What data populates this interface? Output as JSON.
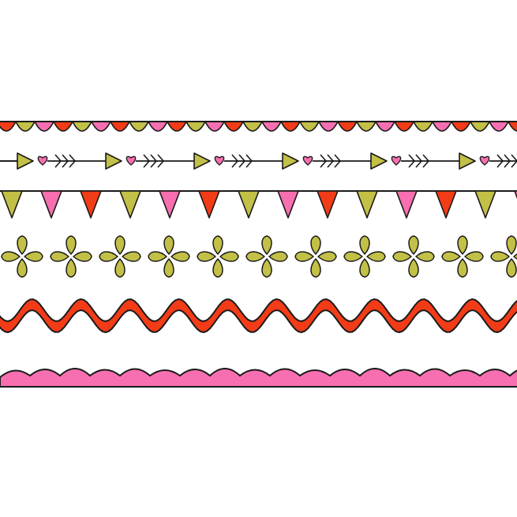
{
  "palette": {
    "olive": "#c2c047",
    "pink": "#f76fb0",
    "red": "#f23b17",
    "ink": "#1a1a1a",
    "background": "#ffffff"
  },
  "borders": [
    {
      "name": "scallop-border",
      "motif": "scallops",
      "colors": [
        "red",
        "olive",
        "pink"
      ]
    },
    {
      "name": "arrow-heart-border",
      "motif": "arrows-with-hearts",
      "colors": [
        "olive",
        "pink"
      ]
    },
    {
      "name": "bunting-border",
      "motif": "pennant-flags",
      "colors": [
        "olive",
        "pink",
        "red"
      ]
    },
    {
      "name": "flower-border",
      "motif": "four-petal-flowers",
      "colors": [
        "olive"
      ]
    },
    {
      "name": "wave-border",
      "motif": "wavy-ribbon",
      "colors": [
        "red"
      ]
    },
    {
      "name": "pink-hill-border",
      "motif": "wavy-hills",
      "colors": [
        "pink"
      ]
    }
  ]
}
